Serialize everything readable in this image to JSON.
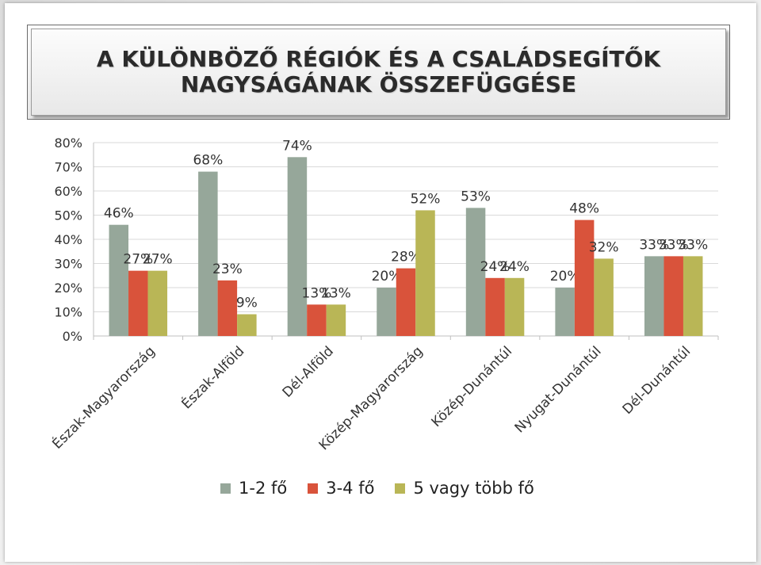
{
  "title_lines": [
    "A KÜLÖNBÖZŐ RÉGIÓK ÉS A CSALÁDSEGÍTŐK",
    "NAGYSÁGÁNAK ÖSSZEFÜGGÉSE"
  ],
  "chart_data": {
    "type": "bar",
    "categories": [
      "Észak-Magyarország",
      "Észak-Alföld",
      "Dél-Alföld",
      "Közép-Magyarország",
      "Közép-Dunántúl",
      "Nyugat-Dunántúl",
      "Dél-Dunántúl"
    ],
    "series": [
      {
        "name": "1-2 fő",
        "color": "#96a79a",
        "values": [
          46,
          68,
          74,
          20,
          53,
          20,
          33
        ],
        "labels": [
          "46%",
          "68%",
          "74%",
          "20%",
          "53%",
          "20%",
          "33%"
        ]
      },
      {
        "name": "3-4 fő",
        "color": "#d9533b",
        "values": [
          27,
          23,
          13,
          28,
          24,
          48,
          33
        ],
        "labels": [
          "27%",
          "23%",
          "13%",
          "28%",
          "24%",
          "48%",
          "33%"
        ]
      },
      {
        "name": "5 vagy több fő",
        "color": "#b9b656",
        "values": [
          27,
          9,
          13,
          52,
          24,
          32,
          33
        ],
        "labels": [
          "27%",
          "9%",
          "13%",
          "52%",
          "24%",
          "32%",
          "33%"
        ]
      }
    ],
    "y_ticks": [
      "0%",
      "10%",
      "20%",
      "30%",
      "40%",
      "50%",
      "60%",
      "70%",
      "80%"
    ],
    "ylim": [
      0,
      80
    ],
    "grid": true,
    "legend_position": "bottom"
  }
}
